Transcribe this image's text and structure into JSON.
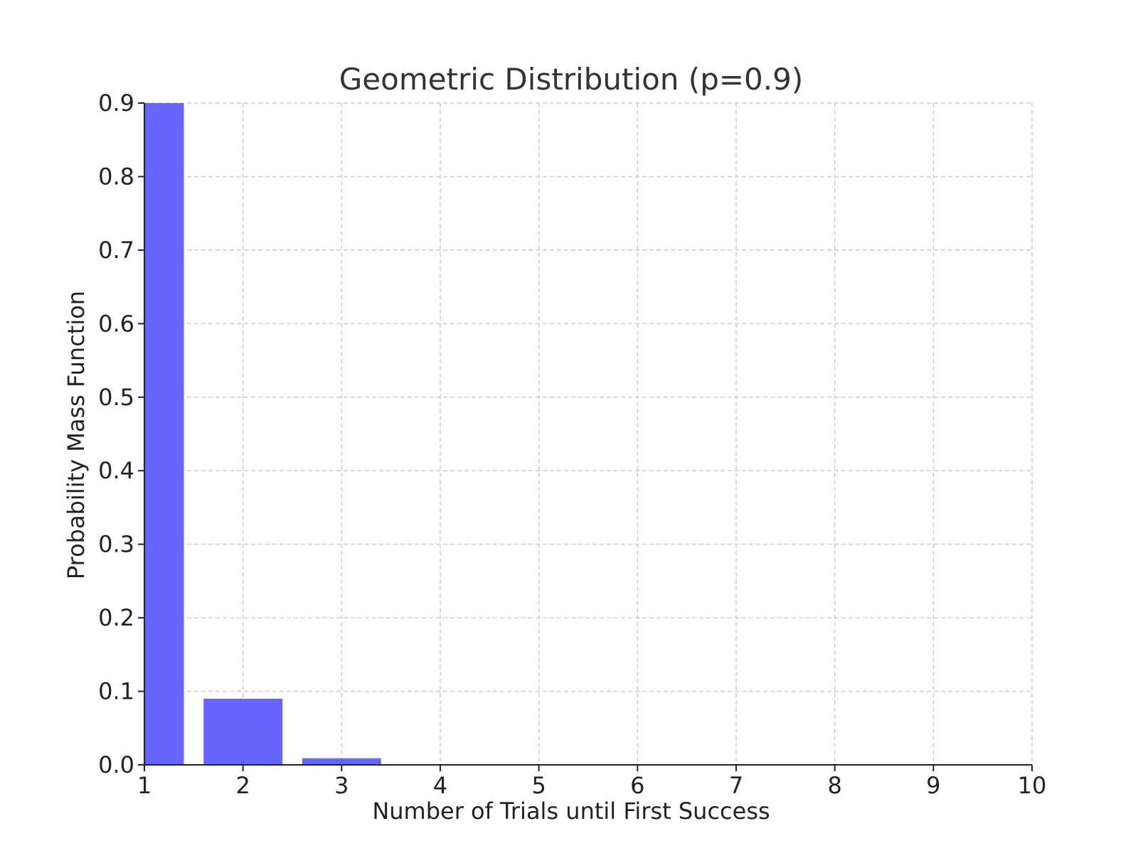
{
  "chart_data": {
    "type": "bar",
    "title": "Geometric Distribution (p=0.9)",
    "xlabel": "Number of Trials until First Success",
    "ylabel": "Probability Mass Function",
    "x": [
      1,
      2,
      3,
      4,
      5,
      6,
      7,
      8,
      9,
      10
    ],
    "values": [
      0.9,
      0.09,
      0.009,
      0.0009,
      9e-05,
      9e-06,
      9e-07,
      9e-08,
      9e-09,
      9e-10
    ],
    "xlim": [
      1,
      10
    ],
    "ylim": [
      0,
      0.9
    ],
    "xticks": [
      "1",
      "2",
      "3",
      "4",
      "5",
      "6",
      "7",
      "8",
      "9",
      "10"
    ],
    "yticks": [
      "0.0",
      "0.1",
      "0.2",
      "0.3",
      "0.4",
      "0.5",
      "0.6",
      "0.7",
      "0.8",
      "0.9"
    ],
    "grid": true,
    "bar_color": "#6666ff"
  }
}
